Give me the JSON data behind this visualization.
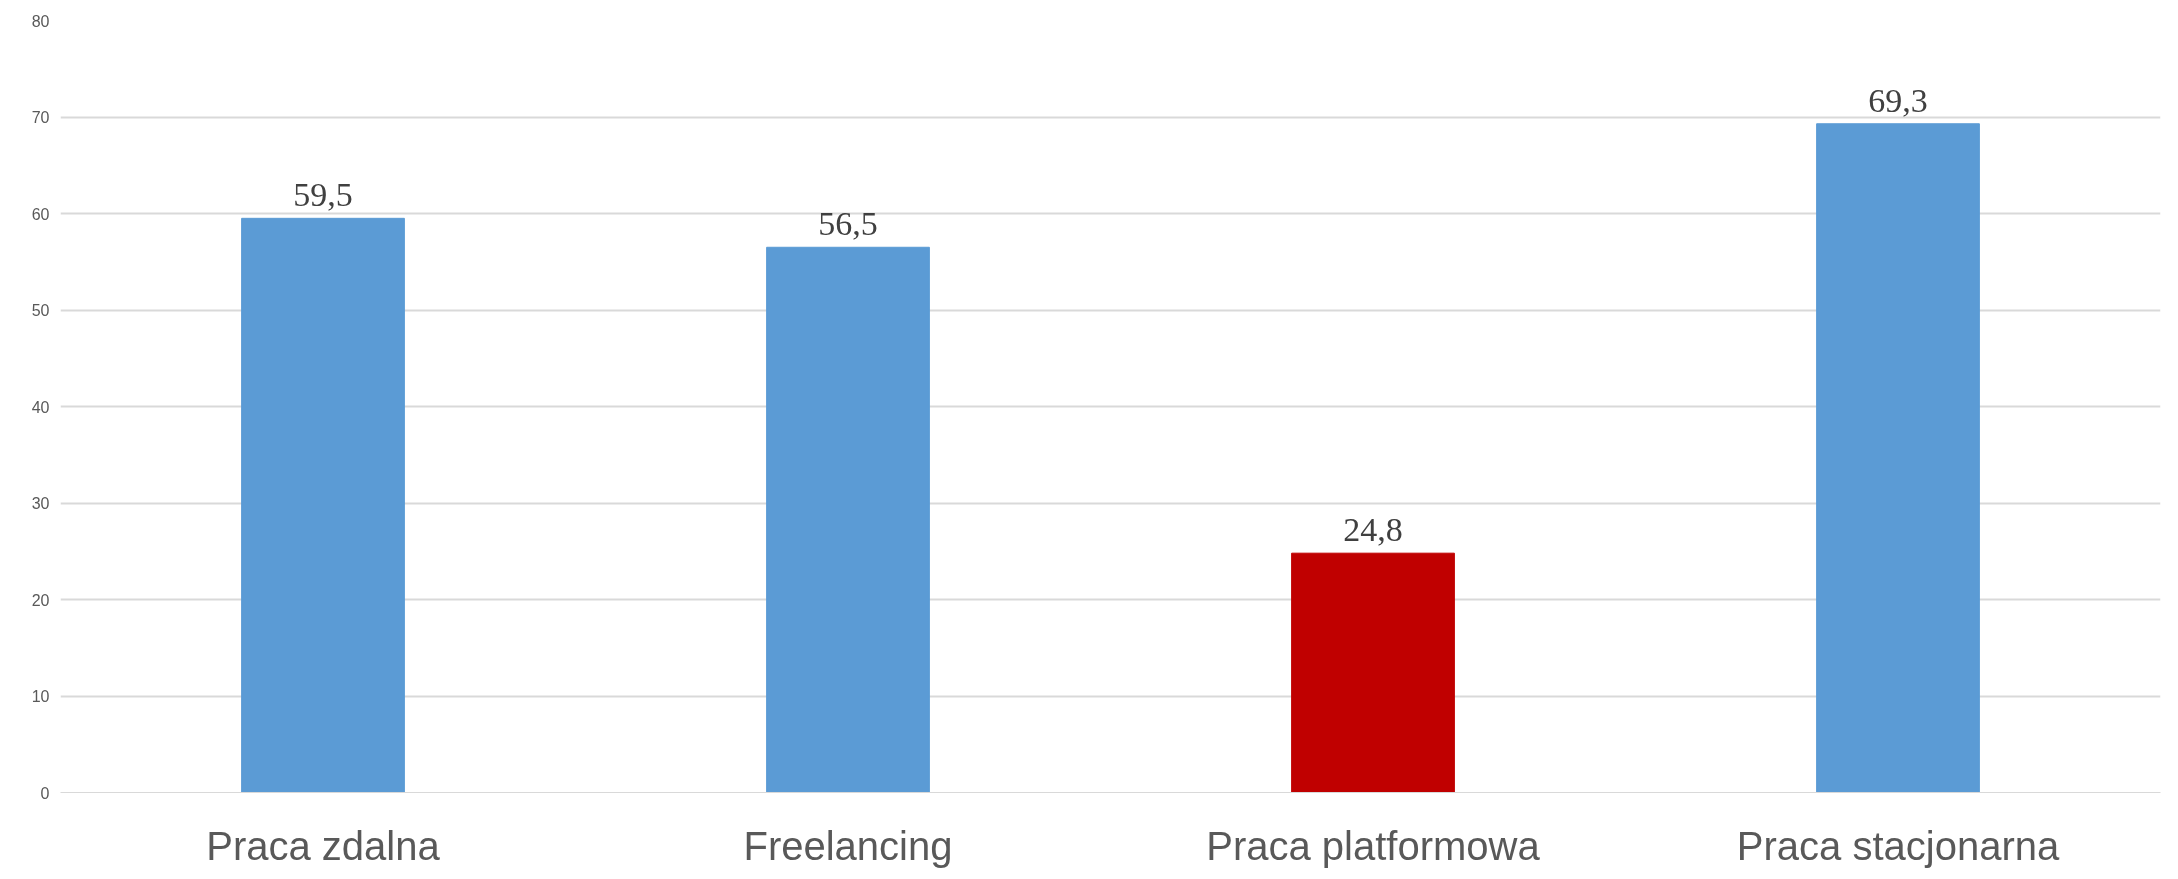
{
  "chart_data": {
    "type": "bar",
    "categories": [
      "Praca zdalna",
      "Freelancing",
      "Praca platformowa",
      "Praca stacjonarna"
    ],
    "values": [
      59.5,
      56.5,
      24.8,
      69.3
    ],
    "colors": [
      "#5b9bd5",
      "#5b9bd5",
      "#c00000",
      "#5b9bd5"
    ],
    "value_labels": [
      "59,5",
      "56,5",
      "24,8",
      "69,3"
    ],
    "ylim": [
      0,
      80
    ],
    "yticks": [
      0,
      10,
      20,
      30,
      40,
      50,
      60,
      70,
      80
    ],
    "grid": "y"
  }
}
